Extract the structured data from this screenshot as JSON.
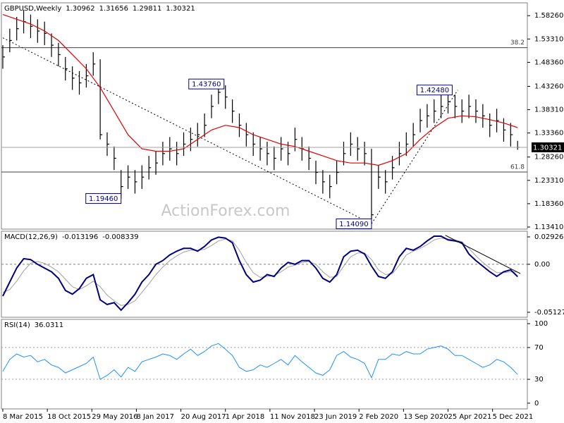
{
  "chart_data": [
    {
      "type": "ohlc",
      "title": "GBPUSD,Weekly",
      "quote": [
        1.30962,
        1.31656,
        1.29811,
        1.30321
      ],
      "x": [
        0,
        5,
        10,
        15,
        20,
        25,
        30,
        35,
        40,
        45,
        50,
        55,
        60,
        65,
        70,
        75,
        80,
        85,
        90,
        95,
        100,
        105,
        110,
        115,
        120,
        125,
        130,
        135,
        140,
        145,
        150,
        155,
        160,
        165,
        170,
        175,
        180,
        185,
        190,
        195,
        200,
        205,
        210,
        215,
        220,
        225,
        230,
        235,
        240,
        245,
        250,
        255,
        260,
        265,
        270,
        275,
        280,
        285,
        290,
        295,
        300,
        305,
        310,
        315,
        320,
        325,
        330,
        335,
        340,
        345,
        350,
        355,
        360,
        365,
        370
      ],
      "series": [
        {
          "color": "#000000",
          "values": [
            1.495,
            1.53,
            1.555,
            1.57,
            1.56,
            1.55,
            1.545,
            1.52,
            1.5,
            1.47,
            1.45,
            1.44,
            1.455,
            1.48,
            1.33,
            1.31,
            1.28,
            1.22,
            1.24,
            1.23,
            1.24,
            1.26,
            1.27,
            1.29,
            1.3,
            1.29,
            1.31,
            1.32,
            1.33,
            1.35,
            1.39,
            1.42,
            1.41,
            1.38,
            1.35,
            1.33,
            1.31,
            1.3,
            1.29,
            1.28,
            1.3,
            1.29,
            1.32,
            1.3,
            1.28,
            1.25,
            1.23,
            1.22,
            1.25,
            1.29,
            1.31,
            1.3,
            1.29,
            1.16,
            1.24,
            1.23,
            1.26,
            1.29,
            1.31,
            1.33,
            1.36,
            1.37,
            1.38,
            1.39,
            1.4,
            1.39,
            1.38,
            1.39,
            1.38,
            1.37,
            1.35,
            1.36,
            1.34,
            1.33,
            1.30321
          ],
          "high": [
            1.52,
            1.555,
            1.58,
            1.595,
            1.585,
            1.575,
            1.57,
            1.545,
            1.525,
            1.495,
            1.475,
            1.465,
            1.48,
            1.505,
            1.49,
            1.335,
            1.305,
            1.255,
            1.265,
            1.255,
            1.265,
            1.285,
            1.295,
            1.315,
            1.325,
            1.315,
            1.335,
            1.345,
            1.355,
            1.375,
            1.415,
            1.4376,
            1.435,
            1.405,
            1.375,
            1.355,
            1.335,
            1.325,
            1.315,
            1.305,
            1.325,
            1.315,
            1.345,
            1.325,
            1.305,
            1.275,
            1.255,
            1.245,
            1.275,
            1.315,
            1.335,
            1.325,
            1.315,
            1.3,
            1.265,
            1.255,
            1.285,
            1.315,
            1.335,
            1.355,
            1.385,
            1.395,
            1.405,
            1.415,
            1.4248,
            1.415,
            1.405,
            1.415,
            1.405,
            1.395,
            1.375,
            1.385,
            1.365,
            1.355,
            1.317
          ],
          "low": [
            1.47,
            1.505,
            1.53,
            1.545,
            1.535,
            1.525,
            1.52,
            1.495,
            1.475,
            1.445,
            1.425,
            1.415,
            1.43,
            1.455,
            1.32,
            1.285,
            1.255,
            1.1946,
            1.215,
            1.205,
            1.215,
            1.235,
            1.245,
            1.265,
            1.275,
            1.265,
            1.285,
            1.295,
            1.305,
            1.325,
            1.365,
            1.395,
            1.385,
            1.355,
            1.325,
            1.305,
            1.285,
            1.275,
            1.265,
            1.255,
            1.275,
            1.265,
            1.295,
            1.275,
            1.255,
            1.225,
            1.205,
            1.195,
            1.225,
            1.265,
            1.285,
            1.275,
            1.265,
            1.1409,
            1.215,
            1.205,
            1.235,
            1.265,
            1.285,
            1.305,
            1.335,
            1.345,
            1.355,
            1.365,
            1.375,
            1.365,
            1.355,
            1.365,
            1.355,
            1.345,
            1.325,
            1.335,
            1.315,
            1.305,
            1.298
          ]
        }
      ],
      "ma": {
        "color": "#e00000",
        "x": [
          0,
          10,
          20,
          30,
          40,
          50,
          60,
          70,
          80,
          90,
          100,
          110,
          120,
          130,
          140,
          150,
          160,
          170,
          180,
          190,
          200,
          210,
          220,
          230,
          240,
          250,
          260,
          270,
          280,
          290,
          300,
          310,
          320,
          330,
          340,
          350,
          360,
          370
        ],
        "values": [
          1.585,
          1.575,
          1.565,
          1.55,
          1.53,
          1.5,
          1.47,
          1.43,
          1.38,
          1.33,
          1.3,
          1.295,
          1.295,
          1.3,
          1.32,
          1.34,
          1.35,
          1.345,
          1.33,
          1.32,
          1.31,
          1.305,
          1.295,
          1.285,
          1.275,
          1.27,
          1.27,
          1.265,
          1.275,
          1.29,
          1.32,
          1.345,
          1.365,
          1.37,
          1.368,
          1.362,
          1.355,
          1.345
        ]
      },
      "xlim": [
        -1,
        377
      ],
      "ylim": [
        1.1296,
        1.6099
      ],
      "yticks": [
        {
          "value": 1.5826,
          "label": "1.58260"
        },
        {
          "value": 1.5331,
          "label": "1.53310"
        },
        {
          "value": 1.4836,
          "label": "1.48360"
        },
        {
          "value": 1.4326,
          "label": "1.43260"
        },
        {
          "value": 1.3831,
          "label": "1.38310"
        },
        {
          "value": 1.3336,
          "label": "1.33360"
        },
        {
          "value": 1.2826,
          "label": "1.28260"
        },
        {
          "value": 1.2331,
          "label": "1.23310"
        },
        {
          "value": 1.1836,
          "label": "1.18360"
        },
        {
          "value": 1.1341,
          "label": "1.13410"
        }
      ],
      "last": 1.30321,
      "levels": [
        {
          "value": 1.5147,
          "label": "38.2"
        },
        {
          "value": 1.2508,
          "label": "61.8"
        }
      ],
      "annotations": [
        {
          "value": 1.4376,
          "label": "1.43760",
          "x": 159
        },
        {
          "value": 1.4248,
          "label": "1.42480",
          "x": 323
        },
        {
          "value": 1.1946,
          "label": "1.19460",
          "x": 85
        },
        {
          "value": 1.1409,
          "label": "1.14090",
          "x": 265
        }
      ],
      "trendlines": [
        {
          "x": [
            0,
            265
          ],
          "y": [
            1.5356,
            1.1409
          ]
        },
        {
          "x": [
            265,
            327
          ],
          "y": [
            1.1409,
            1.4248
          ]
        }
      ],
      "watermark": "ActionForex.com"
    },
    {
      "type": "macd",
      "title": "MACD(12,26,9)",
      "readout": [
        -0.013196,
        -0.008339
      ],
      "x": [
        0,
        5,
        10,
        15,
        20,
        25,
        30,
        35,
        40,
        45,
        50,
        55,
        60,
        65,
        70,
        75,
        80,
        85,
        90,
        95,
        100,
        105,
        110,
        115,
        120,
        125,
        130,
        135,
        140,
        145,
        150,
        155,
        160,
        165,
        170,
        175,
        180,
        185,
        190,
        195,
        200,
        205,
        210,
        215,
        220,
        225,
        230,
        235,
        240,
        245,
        250,
        255,
        260,
        265,
        270,
        275,
        280,
        285,
        290,
        295,
        300,
        305,
        310,
        315,
        320,
        325,
        330,
        335,
        340,
        345,
        350,
        355,
        360,
        365,
        370
      ],
      "series": [
        {
          "color": "#a0a0a0",
          "values": [
            -0.03,
            -0.027,
            -0.018,
            -0.007,
            0.001,
            0.003,
            0.001,
            -0.003,
            -0.008,
            -0.016,
            -0.024,
            -0.027,
            -0.023,
            -0.018,
            -0.024,
            -0.033,
            -0.039,
            -0.044,
            -0.043,
            -0.039,
            -0.03,
            -0.021,
            -0.011,
            -0.003,
            0.004,
            0.009,
            0.013,
            0.015,
            0.015,
            0.016,
            0.02,
            0.025,
            0.027,
            0.025,
            0.015,
            0.002,
            -0.009,
            -0.014,
            -0.013,
            -0.012,
            -0.008,
            -0.003,
            -0.001,
            0.002,
            0.003,
            0.0,
            -0.008,
            -0.014,
            -0.013,
            -0.002,
            0.008,
            0.012,
            0.012,
            0.005,
            -0.006,
            -0.011,
            -0.01,
            -0.001,
            0.01,
            0.014,
            0.017,
            0.021,
            0.026,
            0.028,
            0.027,
            0.026,
            0.024,
            0.017,
            0.009,
            0.002,
            -0.004,
            -0.009,
            -0.009,
            -0.008,
            -0.008339
          ]
        },
        {
          "color": "#00007f",
          "values": [
            -0.034,
            -0.019,
            -0.004,
            0.006,
            0.005,
            0,
            -0.004,
            -0.008,
            -0.015,
            -0.028,
            -0.032,
            -0.026,
            -0.015,
            -0.011,
            -0.038,
            -0.043,
            -0.041,
            -0.049,
            -0.041,
            -0.032,
            -0.019,
            -0.011,
            0,
            0.004,
            0.01,
            0.014,
            0.017,
            0.017,
            0.014,
            0.019,
            0.026,
            0.029,
            0.028,
            0.023,
            0.004,
            -0.011,
            -0.019,
            -0.017,
            -0.011,
            -0.013,
            -0.004,
            0.002,
            0,
            0.004,
            0.004,
            -0.004,
            -0.015,
            -0.019,
            -0.011,
            0.008,
            0.014,
            0.015,
            0.011,
            -0.002,
            -0.013,
            -0.015,
            -0.008,
            0.008,
            0.017,
            0.015,
            0.019,
            0.025,
            0.03,
            0.03,
            0.026,
            0.025,
            0.023,
            0.011,
            0.004,
            -0.002,
            -0.008,
            -0.013,
            -0.008,
            -0.006,
            -0.013196
          ]
        }
      ],
      "xlim": [
        -1,
        377
      ],
      "ylim": [
        -0.0566,
        0.0353
      ],
      "yticks": [
        0.029261,
        {
          "value": 0,
          "label": "0.00"
        },
        -0.051279
      ],
      "zero_line": true,
      "trendlines": [
        {
          "x": [
            318,
            372
          ],
          "y": [
            0.031,
            -0.01
          ]
        }
      ]
    },
    {
      "type": "line",
      "title": "RSI(14)",
      "readout": 36.0311,
      "x": [
        0,
        5,
        10,
        15,
        20,
        25,
        30,
        35,
        40,
        45,
        50,
        55,
        60,
        65,
        70,
        75,
        80,
        85,
        90,
        95,
        100,
        105,
        110,
        115,
        120,
        125,
        130,
        135,
        140,
        145,
        150,
        155,
        160,
        165,
        170,
        175,
        180,
        185,
        190,
        195,
        200,
        205,
        210,
        215,
        220,
        225,
        230,
        235,
        240,
        245,
        250,
        255,
        260,
        265,
        270,
        275,
        280,
        285,
        290,
        295,
        300,
        305,
        310,
        315,
        320,
        325,
        330,
        335,
        340,
        345,
        350,
        355,
        360,
        365,
        370
      ],
      "series": [
        {
          "color": "#1e90ff",
          "values": [
            40,
            55,
            62,
            58,
            60,
            52,
            55,
            48,
            45,
            38,
            42,
            46,
            50,
            58,
            30,
            35,
            42,
            33,
            45,
            40,
            52,
            55,
            58,
            62,
            60,
            55,
            62,
            68,
            60,
            65,
            72,
            75,
            68,
            60,
            45,
            40,
            42,
            48,
            45,
            50,
            55,
            48,
            60,
            52,
            45,
            38,
            35,
            42,
            60,
            65,
            58,
            55,
            50,
            32,
            55,
            55,
            62,
            60,
            65,
            62,
            62,
            68,
            70,
            72,
            68,
            60,
            60,
            55,
            50,
            45,
            48,
            55,
            52,
            45,
            36.0311
          ]
        }
      ],
      "xlim": [
        -1,
        377
      ],
      "ylim": [
        -7.2,
        105.4
      ],
      "yticks": [
        100,
        70,
        30,
        0
      ],
      "levels": [
        70,
        30
      ],
      "xticks": [
        {
          "value": 0,
          "label": "8 Mar 2015"
        },
        {
          "value": 32,
          "label": "18 Oct 2015"
        },
        {
          "value": 64,
          "label": "29 May 2016"
        },
        {
          "value": 96,
          "label": "8 Jan 2017"
        },
        {
          "value": 128,
          "label": "20 Aug 2017"
        },
        {
          "value": 160,
          "label": "1 Apr 2018"
        },
        {
          "value": 192,
          "label": "11 Nov 2018"
        },
        {
          "value": 224,
          "label": "23 Jun 2019"
        },
        {
          "value": 256,
          "label": "2 Feb 2020"
        },
        {
          "value": 288,
          "label": "13 Sep 2020"
        },
        {
          "value": 320,
          "label": "25 Apr 2021"
        },
        {
          "value": 352,
          "label": "5 Dec 2021"
        }
      ]
    }
  ]
}
